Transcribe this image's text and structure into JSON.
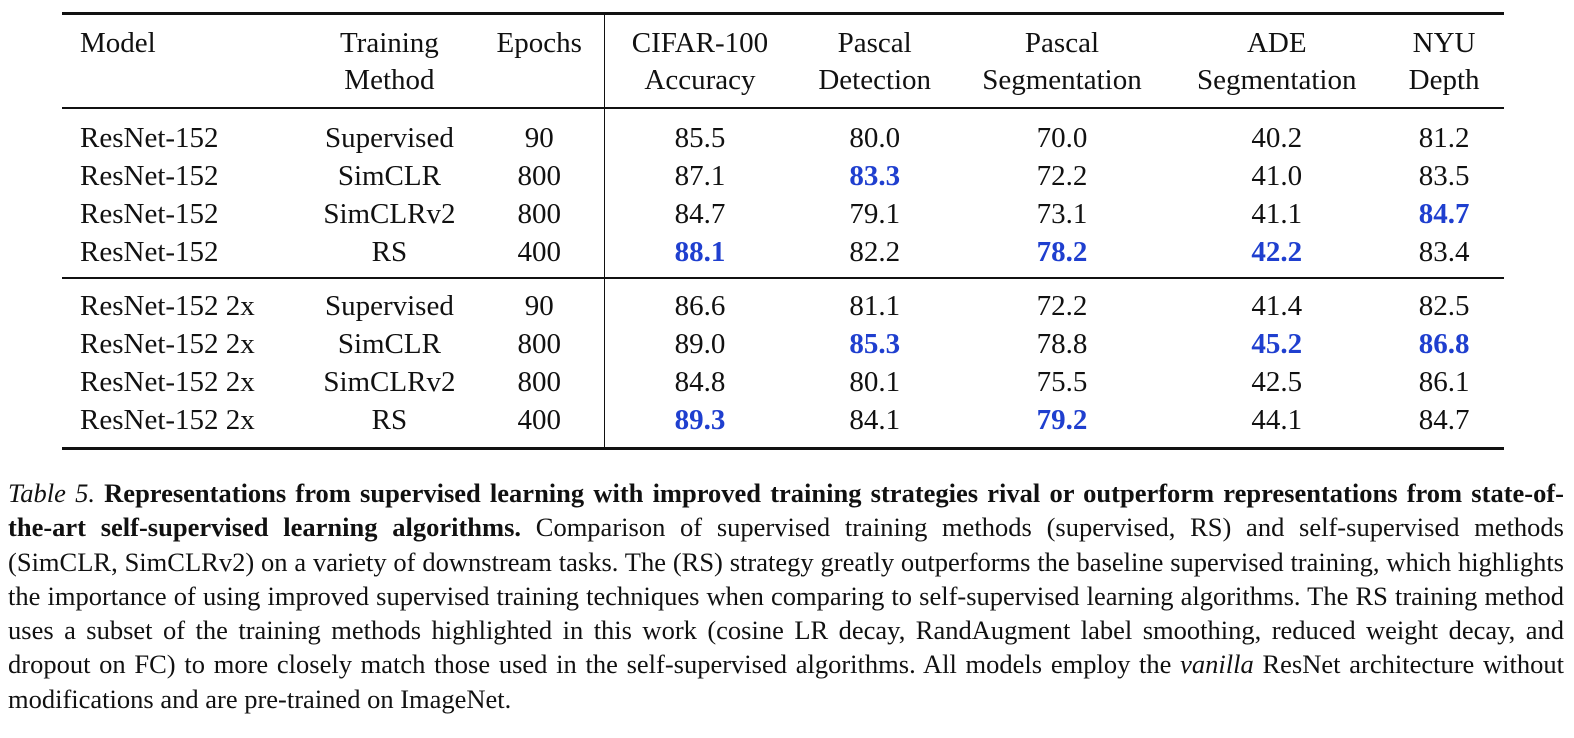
{
  "table": {
    "headers": [
      {
        "line1": "Model",
        "line2": ""
      },
      {
        "line1": "Training",
        "line2": "Method"
      },
      {
        "line1": "Epochs",
        "line2": ""
      },
      {
        "line1": "CIFAR-100",
        "line2": "Accuracy"
      },
      {
        "line1": "Pascal",
        "line2": "Detection"
      },
      {
        "line1": "Pascal",
        "line2": "Segmentation"
      },
      {
        "line1": "ADE",
        "line2": "Segmentation"
      },
      {
        "line1": "NYU",
        "line2": "Depth"
      }
    ],
    "groups": [
      {
        "rows": [
          {
            "model": "ResNet-152",
            "method": "Supervised",
            "epochs": "90",
            "values": [
              "85.5",
              "80.0",
              "70.0",
              "40.2",
              "81.2"
            ],
            "best": [
              false,
              false,
              false,
              false,
              false
            ]
          },
          {
            "model": "ResNet-152",
            "method": "SimCLR",
            "epochs": "800",
            "values": [
              "87.1",
              "83.3",
              "72.2",
              "41.0",
              "83.5"
            ],
            "best": [
              false,
              true,
              false,
              false,
              false
            ]
          },
          {
            "model": "ResNet-152",
            "method": "SimCLRv2",
            "epochs": "800",
            "values": [
              "84.7",
              "79.1",
              "73.1",
              "41.1",
              "84.7"
            ],
            "best": [
              false,
              false,
              false,
              false,
              true
            ]
          },
          {
            "model": "ResNet-152",
            "method": "RS",
            "epochs": "400",
            "values": [
              "88.1",
              "82.2",
              "78.2",
              "42.2",
              "83.4"
            ],
            "best": [
              true,
              false,
              true,
              true,
              false
            ]
          }
        ]
      },
      {
        "rows": [
          {
            "model": "ResNet-152 2x",
            "method": "Supervised",
            "epochs": "90",
            "values": [
              "86.6",
              "81.1",
              "72.2",
              "41.4",
              "82.5"
            ],
            "best": [
              false,
              false,
              false,
              false,
              false
            ]
          },
          {
            "model": "ResNet-152 2x",
            "method": "SimCLR",
            "epochs": "800",
            "values": [
              "89.0",
              "85.3",
              "78.8",
              "45.2",
              "86.8"
            ],
            "best": [
              false,
              true,
              false,
              true,
              true
            ]
          },
          {
            "model": "ResNet-152 2x",
            "method": "SimCLRv2",
            "epochs": "800",
            "values": [
              "84.8",
              "80.1",
              "75.5",
              "42.5",
              "86.1"
            ],
            "best": [
              false,
              false,
              false,
              false,
              false
            ]
          },
          {
            "model": "ResNet-152 2x",
            "method": "RS",
            "epochs": "400",
            "values": [
              "89.3",
              "84.1",
              "79.2",
              "44.1",
              "84.7"
            ],
            "best": [
              true,
              false,
              true,
              false,
              false
            ]
          }
        ]
      }
    ]
  },
  "colors": {
    "best": "#1f3fcf",
    "text": "#111111"
  },
  "caption": {
    "label": "Table 5.",
    "bold": "Representations from supervised learning with improved training strategies rival or outperform representations from state-of-the-art self-supervised learning algorithms.",
    "text1": "Comparison of supervised training methods (supervised, RS) and self-supervised methods (SimCLR, SimCLRv2) on a variety of downstream tasks.  The (RS) strategy greatly outperforms the baseline supervised training, which highlights the importance of using improved supervised training techniques when comparing to self-supervised learning algorithms.  The RS training method uses a subset of the training methods highlighted in this work (cosine LR decay, RandAugment label smoothing, reduced weight decay, and dropout on FC) to more closely match those used in the self-supervised algorithms.  All models employ the",
    "italic": "vanilla",
    "text2": "ResNet architecture without modifications and are pre-trained on ImageNet."
  }
}
